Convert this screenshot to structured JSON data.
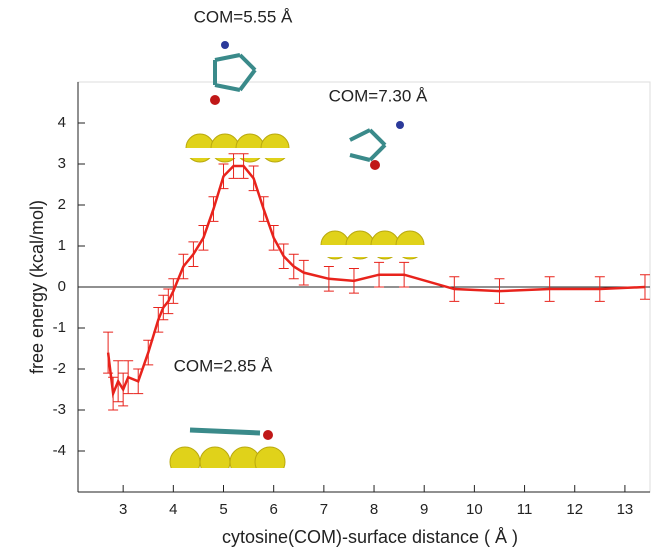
{
  "chart_data": {
    "type": "line",
    "y_label": "free energy (kcal/mol)",
    "x_label": "cytosine(COM)-surface distance ( Å )",
    "annotations": [
      "COM=5.55 Å",
      "COM=7.30 Å",
      "COM=2.85 Å"
    ],
    "x": [
      2.7,
      2.8,
      2.9,
      3.0,
      3.1,
      3.3,
      3.5,
      3.7,
      3.8,
      3.9,
      4.0,
      4.2,
      4.4,
      4.6,
      4.8,
      5.0,
      5.2,
      5.4,
      5.6,
      5.8,
      6.0,
      6.2,
      6.4,
      6.6,
      7.1,
      7.6,
      8.1,
      8.6,
      9.6,
      10.5,
      11.5,
      12.5,
      13.4
    ],
    "series": [
      {
        "color": "#e8231c",
        "values": [
          -1.6,
          -2.6,
          -2.3,
          -2.5,
          -2.2,
          -2.3,
          -1.6,
          -0.8,
          -0.5,
          -0.35,
          -0.1,
          0.5,
          0.8,
          1.2,
          1.9,
          2.7,
          2.95,
          2.95,
          2.65,
          1.9,
          1.2,
          0.75,
          0.5,
          0.35,
          0.2,
          0.15,
          0.3,
          0.3,
          -0.05,
          -0.1,
          -0.05,
          -0.05,
          0.0
        ],
        "errors": [
          0.5,
          0.4,
          0.5,
          0.4,
          0.4,
          0.3,
          0.3,
          0.3,
          0.3,
          0.3,
          0.3,
          0.3,
          0.3,
          0.3,
          0.3,
          0.3,
          0.3,
          0.3,
          0.3,
          0.3,
          0.3,
          0.3,
          0.3,
          0.3,
          0.3,
          0.3,
          0.3,
          0.3,
          0.3,
          0.3,
          0.3,
          0.3,
          0.3
        ]
      }
    ],
    "xlim": [
      2.1,
      13.5
    ],
    "xticks": [
      3,
      4,
      5,
      6,
      7,
      8,
      9,
      10,
      11,
      12,
      13
    ],
    "ylim": [
      -5,
      5
    ],
    "yticks": [
      -4,
      -3,
      -2,
      -1,
      0,
      1,
      2,
      3,
      4
    ],
    "zero_line": true
  }
}
